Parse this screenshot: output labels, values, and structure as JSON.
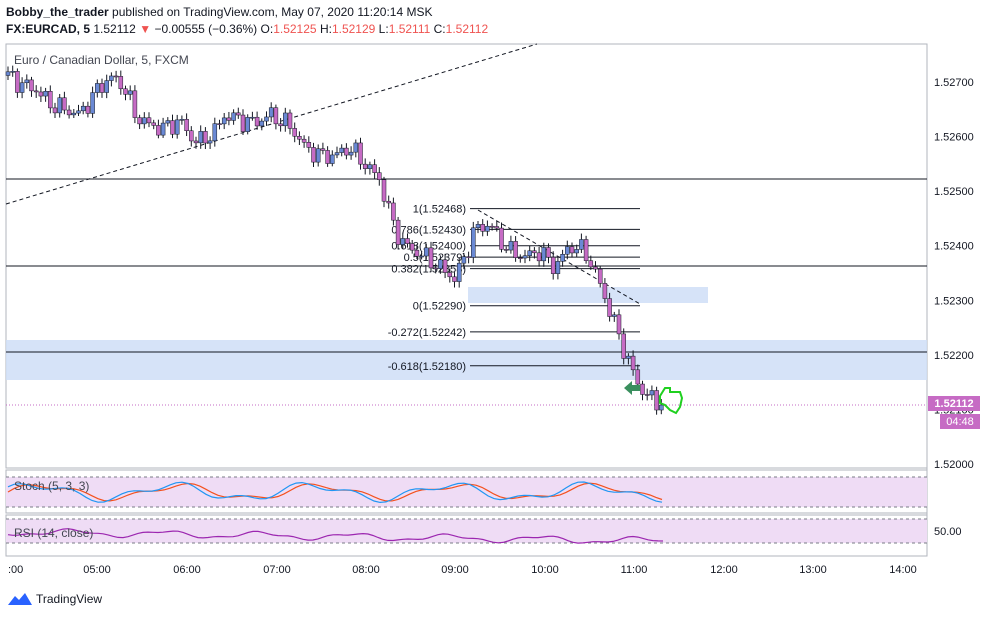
{
  "header": {
    "author": "Bobby_the_trader",
    "published_text": "published on TradingView.com, May 07, 2020 11:20:14 MSK",
    "symbol": "FX:EURCAD, 5",
    "last": "1.52112",
    "change": "−0.00555 (−0.36%)",
    "o_label": "O:",
    "o_value": "1.52125",
    "h_label": "H:",
    "h_value": "1.52129",
    "l_label": "L:",
    "l_value": "1.52111",
    "c_label": "C:",
    "c_value": "1.52112"
  },
  "main_pane": {
    "title": "Euro / Canadian Dollar, 5, FXCM",
    "price_axis": [
      "1.52700",
      "1.52600",
      "1.52500",
      "1.52400",
      "1.52300",
      "1.52200",
      "1.52100",
      "1.52000"
    ],
    "price_tag": "1.52112",
    "countdown": "04:48",
    "fib_levels": [
      {
        "label": "1(1.52468)",
        "price": 1.52468
      },
      {
        "label": "0.786(1.52430)",
        "price": 1.5243
      },
      {
        "label": "0.618(1.52400)",
        "price": 1.524
      },
      {
        "label": "0.5(1.52379)",
        "price": 1.52379
      },
      {
        "label": "0.382(1.52358)",
        "price": 1.52358
      },
      {
        "label": "0(1.52290)",
        "price": 1.5229
      },
      {
        "label": "-0.272(1.52242)",
        "price": 1.52242
      },
      {
        "label": "-0.618(1.52180)",
        "price": 1.5218
      }
    ]
  },
  "stoch_pane": {
    "title": "Stoch (5, 3, 3)"
  },
  "rsi_pane": {
    "title": "RSI (14, close)",
    "axis_value": "50.00"
  },
  "time_axis": [
    ":00",
    "05:00",
    "06:00",
    "07:00",
    "08:00",
    "09:00",
    "10:00",
    "11:00",
    "12:00",
    "13:00",
    "14:00"
  ],
  "brand": {
    "name": "TradingView"
  },
  "colors": {
    "up_candle": "#6a89d4",
    "down_candle": "#c66bc4",
    "zone": "#cfdef7",
    "stoch_band": "#efdcf5",
    "k_line": "#2196f3",
    "d_line": "#f4511e",
    "rsi_line": "#9c27b0",
    "price_tag": "#c66bc4",
    "arrow": "#3a8f5e",
    "thumb": "#1fd01f"
  }
}
